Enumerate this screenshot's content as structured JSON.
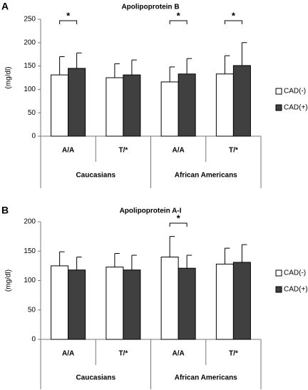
{
  "chart_data": [
    {
      "type": "bar",
      "panel_label": "A",
      "title": "Apolipoprotein B",
      "y_label": "(mg/dl)",
      "groups": [
        {
          "name": "Caucasians",
          "categories": [
            "A/A",
            "T/*"
          ]
        },
        {
          "name": "African Americans",
          "categories": [
            "A/A",
            "T/*"
          ]
        }
      ],
      "series": [
        {
          "name": "CAD(-)",
          "color": "#ffffff",
          "values": [
            131,
            125,
            116,
            133
          ],
          "errors": [
            39,
            30,
            32,
            39
          ]
        },
        {
          "name": "CAD(+)",
          "color": "#404040",
          "values": [
            145,
            131,
            133,
            151
          ],
          "errors": [
            33,
            32,
            33,
            49
          ]
        }
      ],
      "significance": [
        "*",
        null,
        "*",
        "*"
      ],
      "ylim": [
        0,
        250
      ],
      "yticks": [
        0,
        50,
        100,
        150,
        200,
        250
      ]
    },
    {
      "type": "bar",
      "panel_label": "B",
      "title": "Apolipoprotein A-I",
      "y_label": "(mg/dl)",
      "groups": [
        {
          "name": "Caucasians",
          "categories": [
            "A/A",
            "T/*"
          ]
        },
        {
          "name": "African Americans",
          "categories": [
            "A/A",
            "T/*"
          ]
        }
      ],
      "series": [
        {
          "name": "CAD(-)",
          "color": "#ffffff",
          "values": [
            125,
            123,
            140,
            128
          ],
          "errors": [
            24,
            23,
            35,
            27
          ]
        },
        {
          "name": "CAD(+)",
          "color": "#404040",
          "values": [
            118,
            118,
            121,
            131
          ],
          "errors": [
            22,
            25,
            22,
            30
          ]
        }
      ],
      "significance": [
        null,
        null,
        "*",
        null
      ],
      "ylim": [
        0,
        200
      ],
      "yticks": [
        0,
        50,
        100,
        150,
        200
      ]
    }
  ]
}
